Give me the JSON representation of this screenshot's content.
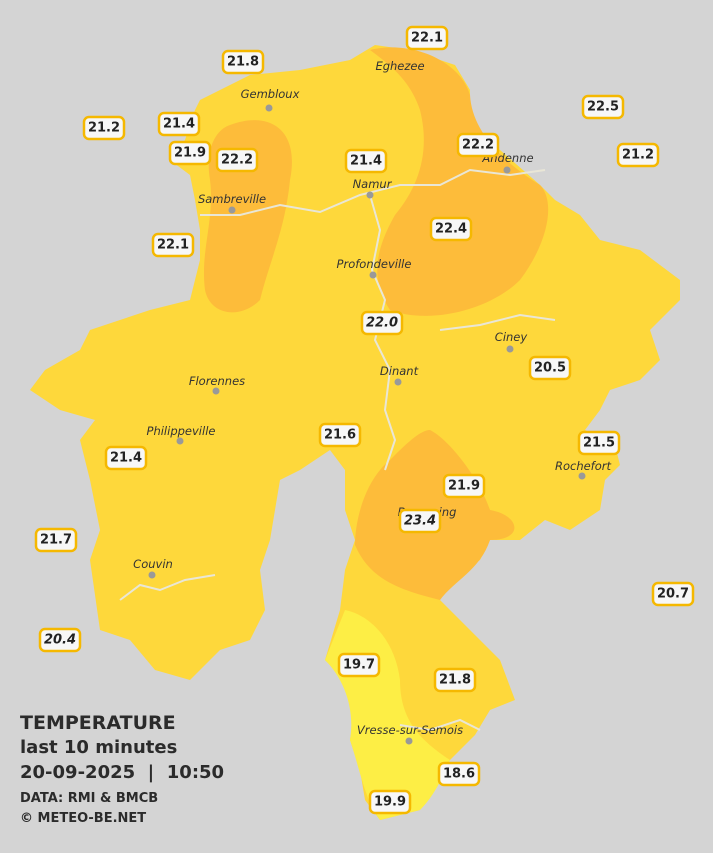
{
  "legend": {
    "title": "TEMPERATURE",
    "subtitle": "last 10 minutes",
    "datetime": "20-09-2025  |  10:50",
    "source": "DATA: RMI & BMCB",
    "credit": "© METEO-BE.NET"
  },
  "cities": [
    "Eghezee",
    "Gembloux",
    "Andenne",
    "Namur",
    "Sambreville",
    "Profondeville",
    "Ciney",
    "Dinant",
    "Florennes",
    "Philippeville",
    "Rochefort",
    "Beauraing",
    "Couvin",
    "Vresse-sur-Semois"
  ],
  "stations": [
    {
      "value": "21.8",
      "italic": false
    },
    {
      "value": "22.1",
      "italic": false
    },
    {
      "value": "22.5",
      "italic": false
    },
    {
      "value": "21.2",
      "italic": false
    },
    {
      "value": "21.4",
      "italic": false
    },
    {
      "value": "21.9",
      "italic": false
    },
    {
      "value": "22.2",
      "italic": false
    },
    {
      "value": "22.2",
      "italic": false
    },
    {
      "value": "21.2",
      "italic": false
    },
    {
      "value": "21.4",
      "italic": false
    },
    {
      "value": "22.1",
      "italic": false
    },
    {
      "value": "22.4",
      "italic": false
    },
    {
      "value": "22.0",
      "italic": true
    },
    {
      "value": "20.5",
      "italic": false
    },
    {
      "value": "21.6",
      "italic": false
    },
    {
      "value": "21.5",
      "italic": false
    },
    {
      "value": "21.4",
      "italic": false
    },
    {
      "value": "21.9",
      "italic": false
    },
    {
      "value": "23.4",
      "italic": true
    },
    {
      "value": "21.7",
      "italic": false
    },
    {
      "value": "20.7",
      "italic": false
    },
    {
      "value": "20.4",
      "italic": true
    },
    {
      "value": "19.7",
      "italic": false
    },
    {
      "value": "21.8",
      "italic": false
    },
    {
      "value": "18.6",
      "italic": false
    },
    {
      "value": "19.9",
      "italic": false
    }
  ]
}
